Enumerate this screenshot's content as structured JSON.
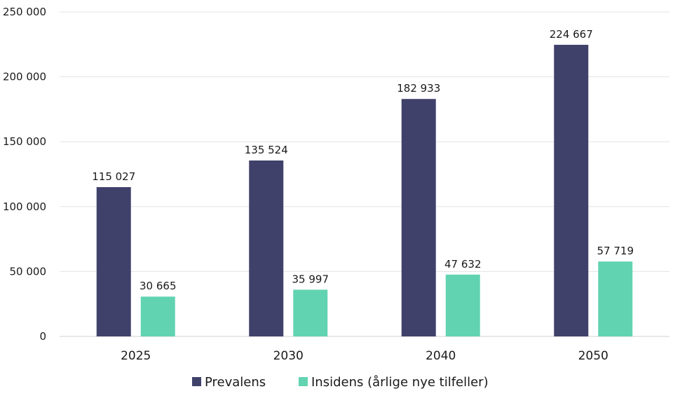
{
  "chart_data": {
    "type": "bar",
    "categories": [
      "2025",
      "2030",
      "2040",
      "2050"
    ],
    "series": [
      {
        "name": "Prevalens",
        "values": [
          115027,
          135524,
          182933,
          224667
        ],
        "value_labels": [
          "115 027",
          "135 524",
          "182 933",
          "224 667"
        ],
        "color": "#40416b"
      },
      {
        "name": "Insidens (årlige nye tilfeller)",
        "values": [
          30665,
          35997,
          47632,
          57719
        ],
        "value_labels": [
          "30 665",
          "35 997",
          "47 632",
          "57 719"
        ],
        "color": "#62d3b1"
      }
    ],
    "ylim": [
      0,
      250000
    ],
    "yticks": [
      0,
      50000,
      100000,
      150000,
      200000,
      250000
    ],
    "ytick_labels": [
      "0",
      "50 000",
      "100 000",
      "150 000",
      "200 000",
      "250 000"
    ],
    "grid": true,
    "legend_position": "bottom",
    "title": "",
    "xlabel": "",
    "ylabel": ""
  }
}
